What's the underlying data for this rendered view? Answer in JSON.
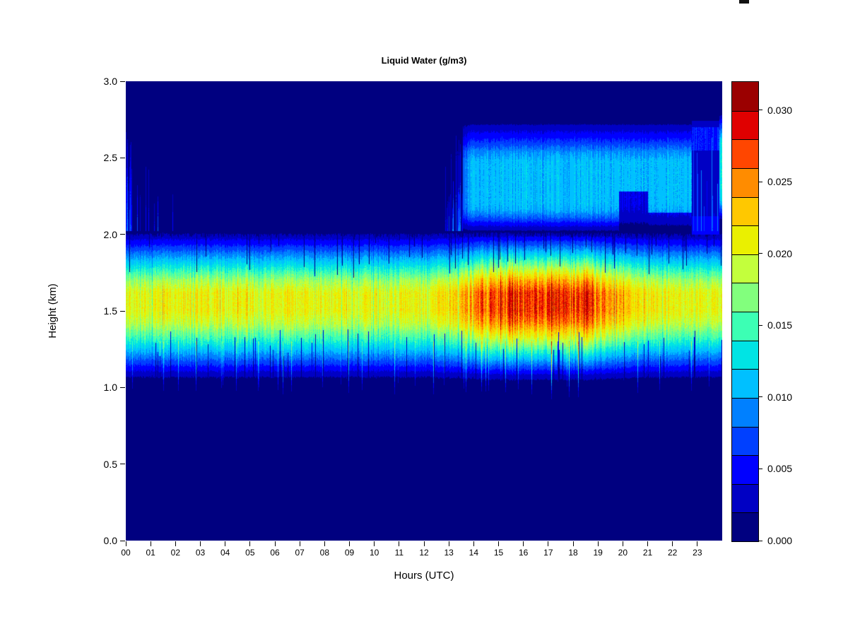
{
  "figure": {
    "title": "Liquid Water (g/m3)",
    "xlabel": "Hours (UTC)",
    "ylabel": "Height (km)"
  },
  "chart_data": {
    "type": "heatmap",
    "title": "Liquid Water (g/m3)",
    "xlabel": "Hours (UTC)",
    "ylabel": "Height (km)",
    "xlim": [
      0,
      24
    ],
    "ylim": [
      0.0,
      3.0
    ],
    "x_tick_labels": [
      "00",
      "01",
      "02",
      "03",
      "04",
      "05",
      "06",
      "07",
      "08",
      "09",
      "10",
      "11",
      "12",
      "13",
      "14",
      "15",
      "16",
      "17",
      "18",
      "19",
      "20",
      "21",
      "22",
      "23"
    ],
    "y_tick_values": [
      0.0,
      0.5,
      1.0,
      1.5,
      2.0,
      2.5,
      3.0
    ],
    "y_tick_labels": [
      "0.0",
      "0.5",
      "1.0",
      "1.5",
      "2.0",
      "2.5",
      "3.0"
    ],
    "grid": false,
    "legend_position": "right-colorbar",
    "colorbar": {
      "vmin": 0.0,
      "vmax": 0.032,
      "n_levels": 16,
      "level_step": 0.002,
      "tick_values": [
        0.0,
        0.005,
        0.01,
        0.015,
        0.02,
        0.025,
        0.03
      ],
      "tick_labels": [
        "0.000",
        "0.005",
        "0.010",
        "0.015",
        "0.020",
        "0.025",
        "0.030"
      ],
      "colors": [
        "#000080",
        "#0000C4",
        "#0000FF",
        "#0040FF",
        "#0080FF",
        "#00C0FF",
        "#00E4E4",
        "#3CFFB4",
        "#82FF7D",
        "#C3FF3C",
        "#EAF000",
        "#FFC800",
        "#FF8C00",
        "#FF4600",
        "#E00000",
        "#9B0000"
      ]
    },
    "field": {
      "hours": [
        0,
        1,
        2,
        3,
        4,
        5,
        6,
        7,
        8,
        9,
        10,
        11,
        12,
        13,
        14,
        15,
        16,
        17,
        18,
        19,
        20,
        21,
        22,
        23
      ],
      "main_band": {
        "extent_km": [
          1.05,
          2.0
        ],
        "core_height_km": [
          1.4,
          1.65
        ],
        "peak_g_m3_by_hour": [
          0.0205,
          0.0205,
          0.021,
          0.021,
          0.0205,
          0.0205,
          0.021,
          0.0205,
          0.0205,
          0.0205,
          0.0205,
          0.0205,
          0.021,
          0.023,
          0.0265,
          0.0275,
          0.0275,
          0.028,
          0.0275,
          0.025,
          0.022,
          0.021,
          0.0205,
          0.0205
        ],
        "profile": [
          [
            1.0,
            0
          ],
          [
            1.07,
            0.1
          ],
          [
            1.14,
            0.28
          ],
          [
            1.22,
            0.48
          ],
          [
            1.32,
            0.72
          ],
          [
            1.42,
            0.92
          ],
          [
            1.5,
            1
          ],
          [
            1.62,
            1
          ],
          [
            1.7,
            0.86
          ],
          [
            1.78,
            0.66
          ],
          [
            1.86,
            0.46
          ],
          [
            1.93,
            0.28
          ],
          [
            1.98,
            0.16
          ],
          [
            2.01,
            0.08
          ],
          [
            2.03,
            0
          ]
        ]
      },
      "elevated_layer": {
        "extent_km": [
          2.0,
          2.75
        ],
        "onset_hour": 13.55,
        "gap_hours": [
          22.78,
          23.9
        ],
        "mean_g_m3_by_hour": [
          0.001,
          0.001,
          0,
          0,
          0,
          0,
          0,
          0,
          0,
          0,
          0,
          0,
          0.001,
          0.005,
          0.011,
          0.011,
          0.011,
          0.011,
          0.011,
          0.011,
          0.01,
          0.01,
          0.008,
          0.004
        ],
        "profile": [
          [
            1.99,
            0
          ],
          [
            2.02,
            0.15
          ],
          [
            2.06,
            0.4
          ],
          [
            2.11,
            0.72
          ],
          [
            2.16,
            0.95
          ],
          [
            2.2,
            1
          ],
          [
            2.48,
            1
          ],
          [
            2.54,
            0.85
          ],
          [
            2.6,
            0.6
          ],
          [
            2.66,
            0.4
          ],
          [
            2.71,
            0.22
          ],
          [
            2.75,
            0
          ]
        ],
        "late_profile": [
          [
            2.08,
            0
          ],
          [
            2.14,
            0.45
          ],
          [
            2.22,
            0.9
          ],
          [
            2.3,
            1
          ],
          [
            2.6,
            1
          ],
          [
            2.68,
            0.65
          ],
          [
            2.75,
            0.32
          ],
          [
            2.8,
            0
          ]
        ]
      }
    }
  }
}
